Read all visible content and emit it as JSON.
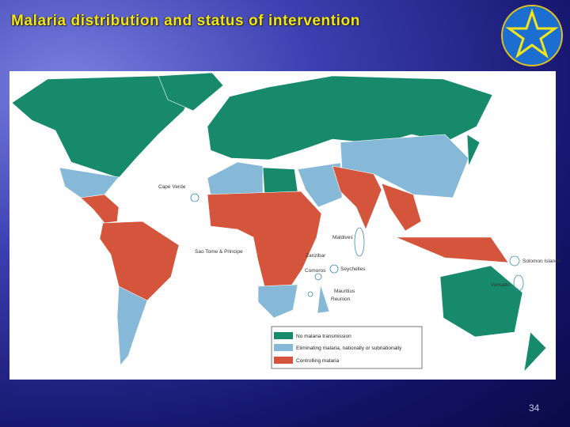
{
  "header": {
    "title": "Malaria distribution and status of intervention"
  },
  "map": {
    "labels": [
      "Cape Verde",
      "Sao Tome & Principe",
      "Maldives",
      "Zanzibar",
      "Comoros",
      "Seychelles",
      "Mauritius",
      "Reunion",
      "Solomon Islands",
      "Vanuatu"
    ]
  },
  "legend": {
    "items": [
      "No malaria transmission",
      "Eliminating malaria, nationally or subnationally",
      "Controlling malaria"
    ]
  },
  "footer": {
    "page_number": "34"
  }
}
